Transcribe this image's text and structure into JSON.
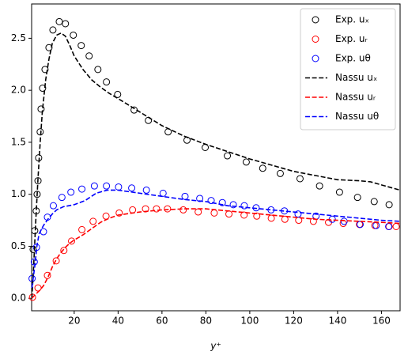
{
  "chart_data": {
    "type": "line",
    "xlabel": "y⁺",
    "legend": "upper right",
    "xlim": [
      0.6,
      168.5
    ],
    "ylim": [
      -0.12,
      2.83
    ],
    "xticks": [
      20,
      40,
      60,
      80,
      100,
      120,
      140,
      160
    ],
    "yticks": [
      {
        "value": 0,
        "label": "0.0"
      },
      0.5,
      {
        "value": 1,
        "label": "1.0"
      },
      1.5,
      {
        "value": 2,
        "label": "2.0"
      },
      2.5
    ],
    "series": [
      {
        "name": "Exp. uₓ",
        "kind": "scatter",
        "color": "#000000",
        "x": [
          1.3,
          2.0,
          2.7,
          3.1,
          3.5,
          3.8,
          4.5,
          4.9,
          5.6,
          6.7,
          8.5,
          10.3,
          13.2,
          16.0,
          19.6,
          23.2,
          26.8,
          30.8,
          34.7,
          39.8,
          47.3,
          53.8,
          62.8,
          71.4,
          79.7,
          89.8,
          98.4,
          105.9,
          113.9,
          122.9,
          131.8,
          140.9,
          149.1,
          156.7,
          163.5
        ],
        "values": [
          0.47,
          0.65,
          0.84,
          1.0,
          1.13,
          1.35,
          1.6,
          1.82,
          2.02,
          2.2,
          2.41,
          2.58,
          2.66,
          2.64,
          2.53,
          2.43,
          2.33,
          2.2,
          2.08,
          1.96,
          1.81,
          1.71,
          1.6,
          1.52,
          1.45,
          1.37,
          1.31,
          1.25,
          1.2,
          1.15,
          1.08,
          1.02,
          0.97,
          0.93,
          0.9
        ]
      },
      {
        "name": "Exp. uᵣ",
        "kind": "scatter",
        "color": "#ff0000",
        "x": [
          1.0,
          3.5,
          7.8,
          11.8,
          15.3,
          18.8,
          23.5,
          28.6,
          34.5,
          40.5,
          46.6,
          52.5,
          57.5,
          62.5,
          69.7,
          76.5,
          83.8,
          90.5,
          97.4,
          103.2,
          109.8,
          116.0,
          122.3,
          129.0,
          135.9,
          142.6,
          150.0,
          157.0,
          163.5,
          166.7
        ],
        "values": [
          0.01,
          0.1,
          0.22,
          0.36,
          0.46,
          0.55,
          0.66,
          0.74,
          0.79,
          0.82,
          0.85,
          0.86,
          0.86,
          0.86,
          0.85,
          0.83,
          0.82,
          0.81,
          0.8,
          0.79,
          0.77,
          0.76,
          0.75,
          0.74,
          0.73,
          0.72,
          0.71,
          0.7,
          0.69,
          0.69
        ]
      },
      {
        "name": "Exp. uθ",
        "kind": "scatter",
        "color": "#0000ff",
        "x": [
          0.8,
          1.8,
          2.8,
          6.0,
          7.8,
          10.5,
          14.4,
          18.5,
          23.5,
          29.2,
          34.7,
          40.2,
          46.2,
          52.9,
          60.5,
          70.5,
          77.2,
          82.4,
          87.5,
          92.5,
          97.5,
          102.9,
          109.7,
          115.8,
          122.0,
          130.2,
          137.6,
          143.0,
          150.3,
          157.6,
          163.3
        ],
        "values": [
          0.19,
          0.35,
          0.49,
          0.64,
          0.78,
          0.89,
          0.97,
          1.02,
          1.05,
          1.08,
          1.08,
          1.07,
          1.06,
          1.04,
          1.01,
          0.98,
          0.96,
          0.94,
          0.92,
          0.9,
          0.89,
          0.87,
          0.85,
          0.84,
          0.81,
          0.79,
          0.76,
          0.74,
          0.71,
          0.7,
          0.69
        ]
      },
      {
        "name": "Nassu uₓ",
        "kind": "line",
        "color": "#000000",
        "x": [
          0.7,
          1.5,
          2.5,
          3.5,
          4.5,
          5.5,
          7,
          8.5,
          10,
          12,
          14,
          16,
          18,
          20,
          24,
          28,
          32,
          36,
          40,
          50,
          60,
          70,
          80,
          90,
          100,
          110,
          120,
          130,
          140,
          150,
          155,
          160,
          168.5
        ],
        "values": [
          0.0,
          0.3,
          0.75,
          1.15,
          1.5,
          1.8,
          2.1,
          2.3,
          2.45,
          2.53,
          2.55,
          2.52,
          2.43,
          2.33,
          2.2,
          2.1,
          2.03,
          1.97,
          1.92,
          1.79,
          1.66,
          1.56,
          1.48,
          1.41,
          1.34,
          1.28,
          1.22,
          1.18,
          1.14,
          1.13,
          1.12,
          1.09,
          1.04
        ]
      },
      {
        "name": "Nassu uᵣ",
        "kind": "line",
        "color": "#ff0000",
        "x": [
          0.7,
          2,
          4,
          6,
          8,
          10,
          12,
          14,
          16,
          18,
          20,
          24,
          28,
          32,
          36,
          40,
          50,
          60,
          70,
          80,
          90,
          100,
          110,
          120,
          130,
          140,
          150,
          160,
          168.5
        ],
        "values": [
          0.0,
          0.03,
          0.07,
          0.12,
          0.2,
          0.3,
          0.38,
          0.44,
          0.49,
          0.53,
          0.56,
          0.61,
          0.67,
          0.73,
          0.77,
          0.8,
          0.83,
          0.85,
          0.86,
          0.86,
          0.84,
          0.82,
          0.8,
          0.78,
          0.76,
          0.75,
          0.74,
          0.73,
          0.72
        ]
      },
      {
        "name": "Nassu uθ",
        "kind": "line",
        "color": "#0000ff",
        "x": [
          0.7,
          2,
          3,
          4,
          6,
          8,
          10,
          12,
          15,
          20,
          25,
          30,
          35,
          40,
          50,
          60,
          70,
          80,
          90,
          100,
          110,
          120,
          130,
          140,
          150,
          160,
          168.5
        ],
        "values": [
          0.1,
          0.3,
          0.5,
          0.62,
          0.7,
          0.76,
          0.81,
          0.85,
          0.88,
          0.9,
          0.94,
          1.01,
          1.04,
          1.04,
          1.01,
          0.98,
          0.95,
          0.93,
          0.89,
          0.87,
          0.85,
          0.83,
          0.81,
          0.79,
          0.77,
          0.75,
          0.74
        ]
      }
    ]
  }
}
